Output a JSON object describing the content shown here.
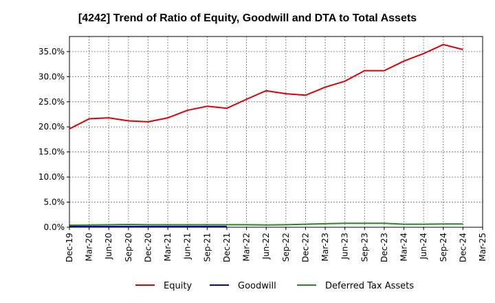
{
  "chart_data": {
    "type": "line",
    "title": "[4242]  Trend of Ratio of Equity, Goodwill and DTA to Total Assets",
    "xlabel": "",
    "ylabel": "",
    "ylim": [
      0,
      38
    ],
    "y_ticks": [
      0,
      5,
      10,
      15,
      20,
      25,
      30,
      35
    ],
    "y_tick_labels": [
      "0.0%",
      "5.0%",
      "10.0%",
      "15.0%",
      "20.0%",
      "25.0%",
      "30.0%",
      "35.0%"
    ],
    "grid": true,
    "legend_position": "bottom",
    "categories": [
      "Dec-19",
      "Mar-20",
      "Jun-20",
      "Sep-20",
      "Dec-20",
      "Mar-21",
      "Jun-21",
      "Sep-21",
      "Dec-21",
      "Mar-22",
      "Jun-22",
      "Sep-22",
      "Dec-22",
      "Mar-23",
      "Jun-23",
      "Sep-23",
      "Dec-23",
      "Mar-24",
      "Jun-24",
      "Sep-24",
      "Dec-24",
      "Mar-25"
    ],
    "series": [
      {
        "name": "Equity",
        "color": "#dd0000",
        "values": [
          19.6,
          21.6,
          21.8,
          21.2,
          21.0,
          21.8,
          23.3,
          24.1,
          23.7,
          25.5,
          27.2,
          26.6,
          26.3,
          27.9,
          29.1,
          31.2,
          31.2,
          33.1,
          34.6,
          36.4,
          35.4,
          null
        ]
      },
      {
        "name": "Goodwill",
        "color": "#0000cc",
        "values": [
          0.15,
          0.15,
          0.15,
          0.15,
          0.15,
          0.15,
          0.15,
          0.15,
          0.15,
          null,
          null,
          null,
          null,
          null,
          null,
          null,
          null,
          null,
          null,
          null,
          null,
          null
        ]
      },
      {
        "name": "Deferred Tax Assets",
        "color": "#228b22",
        "values": [
          0.4,
          0.45,
          0.5,
          0.55,
          0.5,
          0.5,
          0.5,
          0.5,
          0.5,
          0.5,
          0.45,
          0.5,
          0.6,
          0.7,
          0.8,
          0.8,
          0.8,
          0.6,
          0.6,
          0.65,
          0.65,
          null
        ]
      }
    ]
  }
}
